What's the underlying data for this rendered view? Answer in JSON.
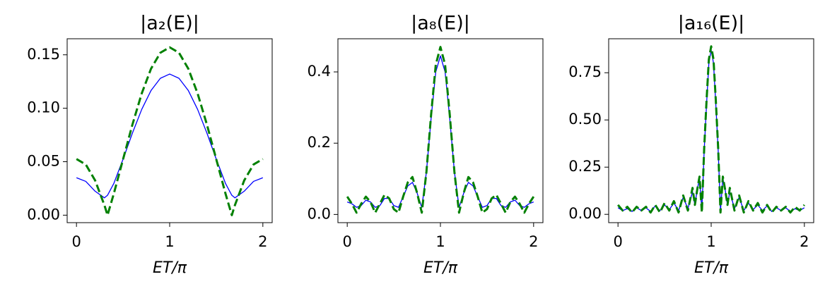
{
  "chart_data": [
    {
      "type": "line",
      "title": "|a₂(E)|",
      "xlabel": "ET/π",
      "x": [
        0,
        0.1,
        0.2,
        0.3,
        0.333,
        0.4,
        0.5,
        0.6,
        0.7,
        0.8,
        0.9,
        1,
        1.1,
        1.2,
        1.3,
        1.4,
        1.5,
        1.6,
        1.667,
        1.7,
        1.8,
        1.9,
        2
      ],
      "series": [
        {
          "color": "#0000ff",
          "linestyle": "solid",
          "values": [
            0.035,
            0.0316,
            0.0224,
            0.0162,
            0.0186,
            0.0295,
            0.0524,
            0.0767,
            0.0989,
            0.1166,
            0.128,
            0.132,
            0.128,
            0.1166,
            0.0989,
            0.0767,
            0.0524,
            0.0295,
            0.0186,
            0.0162,
            0.0224,
            0.0316,
            0.035
          ]
        },
        {
          "color": "#008000",
          "linestyle": "dashed",
          "values": [
            0.0525,
            0.0474,
            0.0325,
            0.0093,
            0,
            0.0199,
            0.0523,
            0.0846,
            0.1138,
            0.137,
            0.1519,
            0.157,
            0.1519,
            0.137,
            0.1138,
            0.0846,
            0.0523,
            0.0199,
            0,
            0.0093,
            0.0325,
            0.0474,
            0.0525
          ]
        }
      ],
      "xlim": [
        -0.1,
        2.1
      ],
      "xticks": [
        0,
        1,
        2
      ],
      "ylim": [
        -0.007,
        0.165
      ],
      "yticks": [
        {
          "value": 0,
          "label": "0.00"
        },
        {
          "value": 0.05,
          "label": "0.05"
        },
        {
          "value": 0.1,
          "label": "0.10"
        },
        {
          "value": 0.15,
          "label": "0.15"
        }
      ]
    },
    {
      "type": "line",
      "title": "|a₈(E)|",
      "xlabel": "ET/π",
      "x": [
        0,
        0.05,
        0.1,
        0.15,
        0.2,
        0.25,
        0.3,
        0.35,
        0.4,
        0.45,
        0.5,
        0.55,
        0.6,
        0.65,
        0.7,
        0.75,
        0.8,
        0.85,
        0.9,
        0.95,
        1,
        1.05,
        1.1,
        1.15,
        1.2,
        1.25,
        1.3,
        1.35,
        1.4,
        1.45,
        1.5,
        1.55,
        1.6,
        1.65,
        1.7,
        1.75,
        1.8,
        1.85,
        1.9,
        1.95,
        2
      ],
      "series": [
        {
          "color": "#0000ff",
          "linestyle": "solid",
          "values": [
            0.035,
            0.03,
            0.02,
            0.025,
            0.04,
            0.035,
            0.02,
            0.025,
            0.045,
            0.045,
            0.025,
            0.02,
            0.05,
            0.08,
            0.09,
            0.06,
            0.02,
            0.12,
            0.27,
            0.4,
            0.445,
            0.4,
            0.27,
            0.12,
            0.02,
            0.06,
            0.09,
            0.08,
            0.05,
            0.02,
            0.025,
            0.045,
            0.045,
            0.025,
            0.02,
            0.035,
            0.04,
            0.025,
            0.02,
            0.03,
            0.035
          ]
        },
        {
          "color": "#008000",
          "linestyle": "dashed",
          "values": [
            0.05,
            0.03,
            0.005,
            0.03,
            0.05,
            0.035,
            0.005,
            0.03,
            0.055,
            0.045,
            0.015,
            0.005,
            0.05,
            0.09,
            0.105,
            0.06,
            0.005,
            0.12,
            0.28,
            0.42,
            0.47,
            0.42,
            0.28,
            0.12,
            0.005,
            0.06,
            0.105,
            0.09,
            0.05,
            0.005,
            0.015,
            0.045,
            0.055,
            0.03,
            0.005,
            0.035,
            0.05,
            0.03,
            0.005,
            0.03,
            0.05
          ]
        }
      ],
      "xlim": [
        -0.1,
        2.1
      ],
      "xticks": [
        0,
        1,
        2
      ],
      "ylim": [
        -0.023,
        0.493
      ],
      "yticks": [
        {
          "value": 0,
          "label": "0.0"
        },
        {
          "value": 0.2,
          "label": "0.2"
        },
        {
          "value": 0.4,
          "label": "0.4"
        }
      ]
    },
    {
      "type": "line",
      "title": "|a₁₆(E)|",
      "xlabel": "ET/π",
      "x": [
        0,
        0.05,
        0.1,
        0.15,
        0.2,
        0.25,
        0.3,
        0.35,
        0.4,
        0.45,
        0.5,
        0.55,
        0.6,
        0.65,
        0.7,
        0.75,
        0.8,
        0.825,
        0.85,
        0.875,
        0.9,
        0.925,
        0.95,
        0.975,
        1,
        1.025,
        1.05,
        1.075,
        1.1,
        1.125,
        1.15,
        1.175,
        1.2,
        1.25,
        1.3,
        1.35,
        1.4,
        1.45,
        1.5,
        1.55,
        1.6,
        1.65,
        1.7,
        1.75,
        1.8,
        1.85,
        1.9,
        1.95,
        2
      ],
      "series": [
        {
          "color": "#0000ff",
          "linestyle": "solid",
          "values": [
            0.035,
            0.02,
            0.03,
            0.015,
            0.035,
            0.02,
            0.035,
            0.015,
            0.045,
            0.02,
            0.05,
            0.025,
            0.06,
            0.02,
            0.09,
            0.03,
            0.12,
            0.05,
            0.13,
            0.19,
            0.02,
            0.34,
            0.58,
            0.8,
            0.87,
            0.8,
            0.58,
            0.34,
            0.02,
            0.19,
            0.13,
            0.05,
            0.12,
            0.03,
            0.09,
            0.02,
            0.06,
            0.025,
            0.05,
            0.02,
            0.045,
            0.015,
            0.035,
            0.02,
            0.035,
            0.015,
            0.03,
            0.02,
            0.035
          ]
        },
        {
          "color": "#008000",
          "linestyle": "dashed",
          "values": [
            0.05,
            0.02,
            0.04,
            0.01,
            0.04,
            0.02,
            0.04,
            0.01,
            0.05,
            0.01,
            0.06,
            0.02,
            0.07,
            0.01,
            0.1,
            0.02,
            0.14,
            0.05,
            0.13,
            0.2,
            0.01,
            0.35,
            0.6,
            0.82,
            0.89,
            0.82,
            0.6,
            0.35,
            0.01,
            0.2,
            0.13,
            0.05,
            0.14,
            0.02,
            0.1,
            0.01,
            0.07,
            0.02,
            0.06,
            0.01,
            0.05,
            0.01,
            0.04,
            0.02,
            0.04,
            0.01,
            0.04,
            0.02,
            0.05
          ]
        }
      ],
      "xlim": [
        -0.1,
        2.1
      ],
      "xticks": [
        0,
        1,
        2
      ],
      "ylim": [
        -0.044,
        0.93
      ],
      "yticks": [
        {
          "value": 0,
          "label": "0.00"
        },
        {
          "value": 0.25,
          "label": "0.25"
        },
        {
          "value": 0.5,
          "label": "0.50"
        },
        {
          "value": 0.75,
          "label": "0.75"
        }
      ]
    }
  ]
}
